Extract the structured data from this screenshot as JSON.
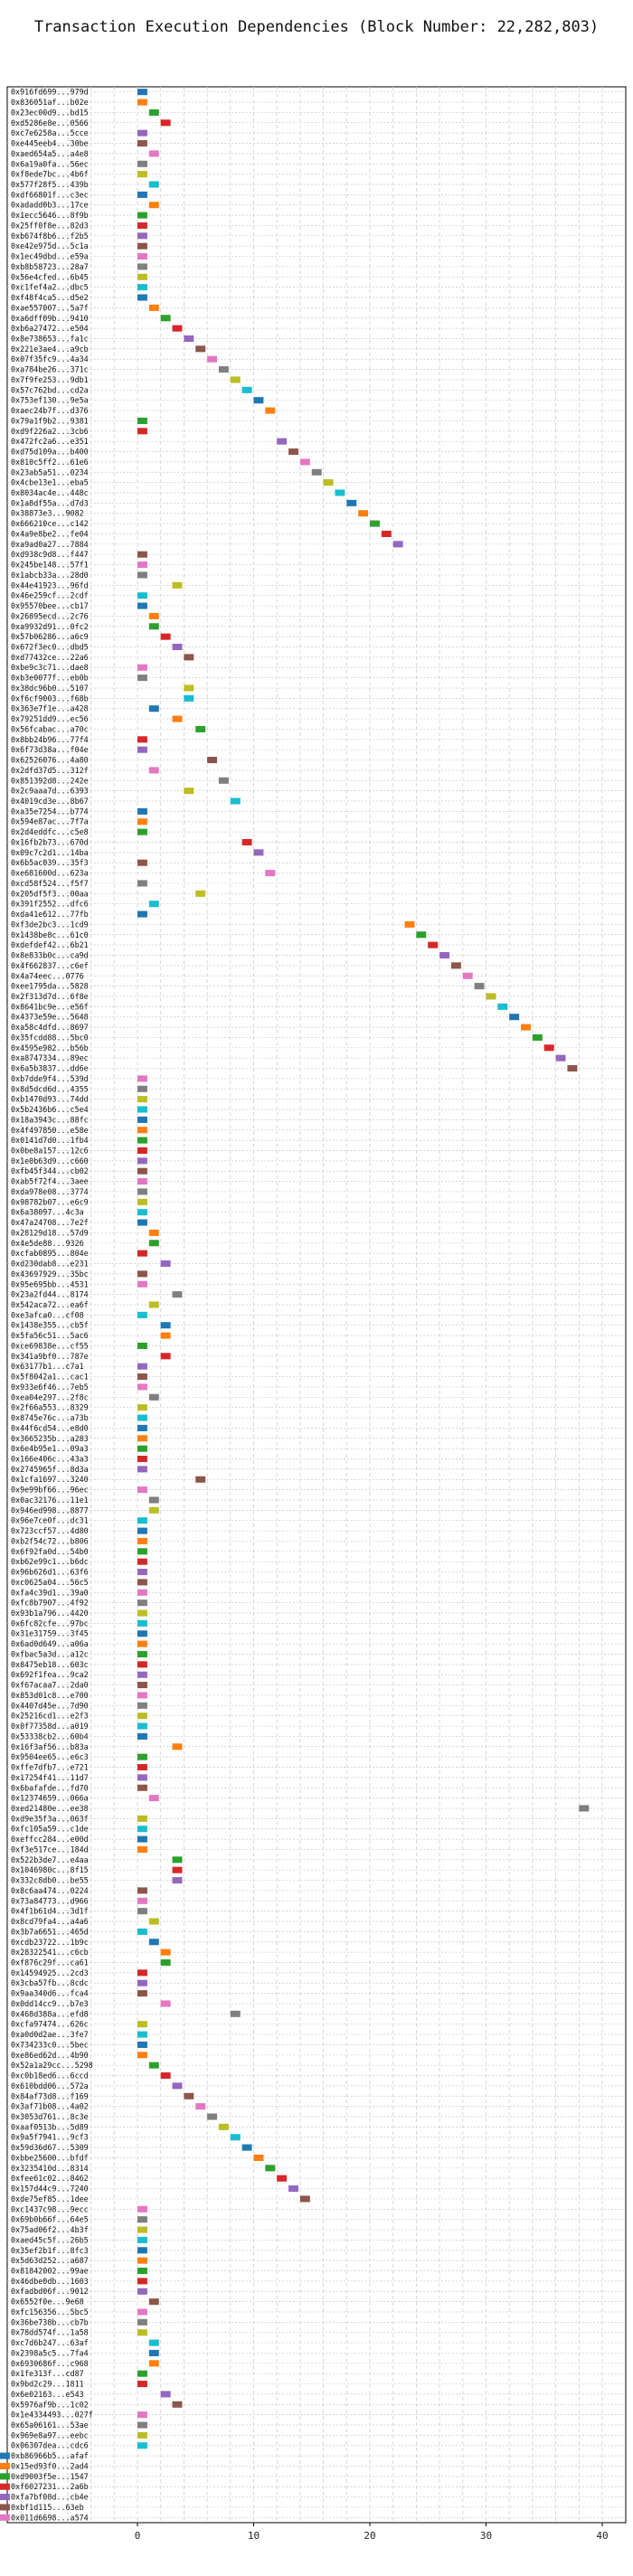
{
  "chart_data": {
    "type": "bar",
    "orientation": "horizontal-gantt",
    "title": "Transaction Execution Dependencies (Block Number: 22,282,803)",
    "xlabel": "",
    "ylabel": "",
    "xlim": [
      -11,
      41
    ],
    "xticks": [
      0,
      10,
      20,
      30,
      40
    ],
    "grid": true,
    "colors": [
      "#1f77b4",
      "#ff7f0e",
      "#2ca02c",
      "#d62728",
      "#9467bd",
      "#8c564b",
      "#e377c2",
      "#7f7f7f",
      "#bcbd22",
      "#17becf"
    ],
    "bar_width": 1,
    "categories": [
      "0x916fd699...979d",
      "0x836051af...b02e",
      "0x23ec00d9...bd15",
      "0xd5286e8e...0566",
      "0xc7e6258a...5cce",
      "0xe445eeb4...30be",
      "0xaed654a5...a4e8",
      "0x6a19a0fa...56ec",
      "0xf8ede7bc...4b6f",
      "0x577f28f5...439b",
      "0xdf66801f...c3ec",
      "0xadadd0b3...17ce",
      "0x1ecc5646...8f9b",
      "0x25ff0f8e...82d3",
      "0xb674f8b6...f2b5",
      "0xe42e975d...5c1a",
      "0x1ec49dbd...e59a",
      "0xb8b58723...28a7",
      "0x56e4cfed...6b45",
      "0xc1fef4a2...dbc5",
      "0xf48f4ca5...d5e2",
      "0xae557007...5a7f",
      "0xa6dff09b...9410",
      "0xb6a27472...e504",
      "0x8e738653...fa1c",
      "0x221e3ae4...a9cb",
      "0x07f35fc9...4a34",
      "0xa784be26...371c",
      "0x7f9fe253...9db1",
      "0x57c762bd...cd2a",
      "0x753ef130...9e5a",
      "0xaec24b7f...d376",
      "0x79a1f9b2...9381",
      "0xd9f226a2...3cb6",
      "0x472fc2a6...e351",
      "0xd75d109a...b400",
      "0x810c5ff2...61e6",
      "0x23ab5a51...0234",
      "0x4cbe13e1...eba5",
      "0x8034ac4e...448c",
      "0x1a8df55a...d7d3",
      "0x38873e3...9082",
      "0x666210ce...c142",
      "0x4a9e8be2...fe04",
      "0xa9ad0a27...7884",
      "0xd938c9d8...f447",
      "0x245be148...57f1",
      "0x1abcb33a...28d0",
      "0x44e41923...96fd",
      "0x46e259cf...2cdf",
      "0x95570bee...cb17",
      "0x26895ecd...2c76",
      "0xa9932d91...0fc2",
      "0x57b06286...a6c9",
      "0x672f3ec0...dbd5",
      "0xd77432ce...22a6",
      "0xbe9c3c71...dae8",
      "0xb3e0077f...eb0b",
      "0x38dc96b0...5107",
      "0xf6cf9003...f68b",
      "0x363e7f1e...a428",
      "0x79251dd9...ec56",
      "0x56fcabac...a70c",
      "0x8bb24b96...77f4",
      "0x6f73d38a...f04e",
      "0x62526076...4a80",
      "0x2dfd37d5...312f",
      "0x851392d8...242e",
      "0x2c9aaa7d...6393",
      "0x4019cd3e...8b67",
      "0xa35e7254...b774",
      "0x594e87ac...7f7a",
      "0x2d4eddfc...c5e8",
      "0x16fb2b73...670d",
      "0x09c7c2d1...14ba",
      "0x6b5ac039...35f3",
      "0xe681600d...623a",
      "0xcd58f524...f5f7",
      "0x205df5f3...00aa",
      "0x391f2552...dfc6",
      "0xda41e612...77fb",
      "0xf3de2bc3...1cd9",
      "0x1438be8c...61c0",
      "0xdefdef42...6b21",
      "0x8e833b0c...ca9d",
      "0x4f662837...c6ef",
      "0x4a74eec...0776",
      "0xee1795da...5828",
      "0x2f313d7d...6f8e",
      "0x8641bc9e...e56f",
      "0x4373e59e...5648",
      "0xa58c4dfd...8697",
      "0x35fcdd88...5bc0",
      "0x4595e982...b56b",
      "0xa8747334...89ec",
      "0x6a5b3837...dd6e",
      "0xb7dde9f4...539d",
      "0x8d5dcd6d...4355",
      "0xb1470d93...74dd",
      "0x5b2436b6...c5e4",
      "0x18a3943c...88fc",
      "0x4f497850...e58e",
      "0x0141d7d0...1fb4",
      "0x0be8a157...12c6",
      "0x1e0b63d9...c660",
      "0xfb45f344...cb02",
      "0xab5f72f4...3aee",
      "0xda978e08...3774",
      "0x98782b07...e6c9",
      "0x6a38097...4c3a",
      "0x47a24708...7e2f",
      "0x28129d18...57d9",
      "0x4e5de88...9326",
      "0xcfab0895...804e",
      "0xd230dab8...e231",
      "0x43697929...35bc",
      "0x95e695bb...4531",
      "0x23a2fd44...8174",
      "0x542aca72...ea6f",
      "0xe3afca0...cf08",
      "0x1438e355...cb5f",
      "0x5fa56c51...5ac6",
      "0xce69838e...cf55",
      "0x341a9bf0...787e",
      "0x63177b1...c7a1",
      "0x5f8042a1...cac1",
      "0x933e6f46...7eb5",
      "0xea04e297...2f8c",
      "0x2f66a553...8329",
      "0x8745e76c...a73b",
      "0x44f6cd54...e8d0",
      "0x3665235b...a283",
      "0x6e4b95e1...09a3",
      "0x166e406c...43a3",
      "0x2745965f...8d3a",
      "0x1cfa1697...3240",
      "0x9e99bf66...96ec",
      "0x0ac32176...11e1",
      "0x946ed998...8877",
      "0x96e7ce0f...dc31",
      "0x723ccf57...4d80",
      "0xb2f54c72...b806",
      "0x6f92fa0d...54b0",
      "0xb62e99c1...b6dc",
      "0x96b626d1...63f6",
      "0xc0625a04...56c5",
      "0xfa4c39d1...39a0",
      "0xfc8b7907...4f92",
      "0x93b1a796...4420",
      "0x6fc82cfe...97bc",
      "0x31e31759...3f45",
      "0x6ad0d649...a06a",
      "0xfbac5a3d...a12c",
      "0x8475eb18...603c",
      "0x692f1fea...9ca2",
      "0xf67acaa7...2da0",
      "0x853d01c8...e700",
      "0x4407d45e...7d90",
      "0x25216cd1...e2f3",
      "0x0f77358d...a019",
      "0x53338cb2...60b4",
      "0x16f3af56...b83a",
      "0x9504ee65...e6c3",
      "0xffe7dfb7...e721",
      "0x17254f41...11d7",
      "0x6bafafde...fd70",
      "0x12374659...066a",
      "0xed21480e...ee38",
      "0xd9e35f3a...063f",
      "0xfc105a59...c1de",
      "0xeffcc284...e00d",
      "0xf3e517ce...184d",
      "0x522b3de7...e4aa",
      "0x1046980c...8f15",
      "0x332c8db0...be55",
      "0x8c6aa474...0224",
      "0x73a84773...d966",
      "0x4f1b61d4...3d1f",
      "0x8cd79fa4...a4a6",
      "0x3b7a6651...465d",
      "0xcdb23722...1b9c",
      "0x28322541...c6cb",
      "0xf876c29f...ca61",
      "0x14594925...2cd3",
      "0x3cba57fb...8cdc",
      "0x9aa340d6...fca4",
      "0x0dd14cc9...b7e3",
      "0x468d388a...efd8",
      "0xcfa97474...626c",
      "0xa0d0d2ae...3fe7",
      "0x734233c0...5bec",
      "0xe86ed62d...4b90",
      "0x52a1a29cc...5298",
      "0xc0b18ed6...6ccd",
      "0x610bdd06...572a",
      "0x84af73d8...f169",
      "0x3af71b08...4a02",
      "0x3053d761...8c3e",
      "0xaaf0513b...5d89",
      "0x9a5f7941...9cf3",
      "0x59d36d67...5309",
      "0xbbe25600...bfdf",
      "0x3235410d...8314",
      "0xfee61c02...8462",
      "0x157d44c9...7240",
      "0xde75ef85...1dee",
      "0xc1437c98...9ecc",
      "0x69b0b66f...64e5",
      "0x75ad06f2...4b3f",
      "0xaed45c5f...26b5",
      "0x35ef2b1f...8fc3",
      "0x5d63d252...a687",
      "0x81842002...99ae",
      "0x46dbe0db...1603",
      "0xfadbd06f...9012",
      "0x6552f0e...9e68",
      "0xfc156356...5bc5",
      "0x36be738b...cb7b",
      "0x78dd574f...1a58",
      "0xc7d6b247...63af",
      "0x2398a5c5...7fa4",
      "0x6930686f...c968",
      "0x1fe313f...cd87",
      "0x9bd2c29...1811",
      "0x6e02163...e543",
      "0x5976af9b...1c02",
      "0x1e4334493...027f",
      "0x65a06161...53ae",
      "0x969e8a97...eebc",
      "0x06307dea...cdc6",
      "0xb86966b5...afaf",
      "0x15ed93f0...2ad4",
      "0xd9003f5e...1547",
      "0xf6027231...2a6b",
      "0xfa7bf08d...cb4e",
      "0xbf1d115...63eb",
      "0x011d6698...a574"
    ],
    "starts": [
      0,
      0,
      1,
      2,
      0,
      0,
      1,
      0,
      0,
      1,
      0,
      1,
      0,
      0,
      0,
      0,
      0,
      0,
      0,
      0,
      0,
      1,
      2,
      3,
      4,
      5,
      6,
      7,
      8,
      9,
      10,
      11,
      0,
      0,
      12,
      13,
      14,
      15,
      16,
      17,
      18,
      19,
      20,
      21,
      22,
      0,
      0,
      0,
      3,
      0,
      0,
      1,
      1,
      2,
      3,
      4,
      0,
      0,
      4,
      4,
      1,
      3,
      5,
      0,
      0,
      6,
      1,
      7,
      4,
      8,
      0,
      0,
      0,
      9,
      10,
      0,
      11,
      0,
      5,
      1,
      0,
      23,
      24,
      25,
      26,
      27,
      28,
      29,
      30,
      31,
      32,
      33,
      34,
      35,
      36,
      37,
      0,
      0,
      0,
      0,
      0,
      0,
      0,
      0,
      0,
      0,
      0,
      0,
      0,
      0,
      0,
      1,
      1,
      0,
      2,
      0,
      0,
      3,
      1,
      0,
      2,
      2,
      0,
      2,
      0,
      0,
      0,
      1,
      0,
      0,
      0,
      0,
      0,
      0,
      0,
      5,
      0,
      1,
      1,
      0,
      0,
      0,
      0,
      0,
      0,
      0,
      0,
      0,
      0,
      0,
      0,
      0,
      0,
      0,
      0,
      0,
      0,
      0,
      0,
      0,
      0,
      3,
      0,
      0,
      0,
      0,
      1,
      38,
      0,
      0,
      0,
      0,
      3,
      3,
      3,
      0,
      0,
      0,
      1,
      0,
      1,
      2,
      2,
      0,
      0,
      0,
      2,
      8,
      0,
      0,
      0,
      0,
      1,
      2,
      3,
      4,
      5,
      6,
      7,
      8,
      9,
      10,
      11,
      12,
      13,
      14,
      0,
      0,
      0,
      0,
      0,
      0,
      0,
      0,
      0,
      1,
      0,
      0,
      0,
      1,
      1,
      1,
      0,
      0,
      2,
      3,
      0,
      0,
      0,
      0
    ]
  }
}
